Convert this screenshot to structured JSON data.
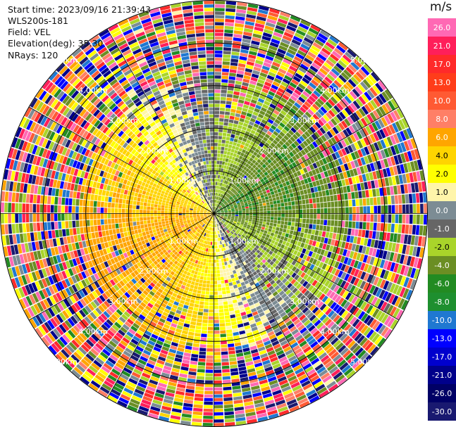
{
  "info": {
    "start_time": "Start time: 2023/09/16 21:39:43",
    "instrument": "WLS200s-181",
    "field": "Field: VEL",
    "elevation": "Elevation(deg): 35.30",
    "nrays": "NRays: 120"
  },
  "chart_data": {
    "type": "heatmap",
    "projection": "polar-ppi",
    "field": "VEL",
    "units": "m/s",
    "nrays": 120,
    "elevation_deg": 35.3,
    "max_range_km": 5.0,
    "range_rings_km": [
      1,
      2,
      3,
      4,
      5
    ],
    "range_ring_labels": [
      "1.00km",
      "2.00km",
      "3.00km",
      "4.00km",
      "5.00km"
    ],
    "colorbar": {
      "title": "m/s",
      "levels": [
        "26.0",
        "21.0",
        "17.0",
        "13.0",
        "10.0",
        "8.0",
        "6.0",
        "4.0",
        "2.0",
        "1.0",
        "0.0",
        "-1.0",
        "-2.0",
        "-4.0",
        "-6.0",
        "-8.0",
        "-10.0",
        "-13.0",
        "-17.0",
        "-21.0",
        "-26.0",
        "-30.0"
      ],
      "colors": [
        "#ff69b4",
        "#ff1f5a",
        "#ff2a2a",
        "#ff3d1a",
        "#ff5a33",
        "#ff7f66",
        "#ffa500",
        "#ffd400",
        "#ffff00",
        "#fff5aa",
        "#7c8c94",
        "#666666",
        "#a9d42a",
        "#6b8e23",
        "#228b22",
        "#1e8f2f",
        "#1f78d1",
        "#0000ff",
        "#0000cd",
        "#00008b",
        "#000066",
        "#191970"
      ]
    },
    "pattern": "approaching (positive, yellow/orange) to the west/north-west, receding (negative, green) to the south-east; outer gates noisy"
  }
}
